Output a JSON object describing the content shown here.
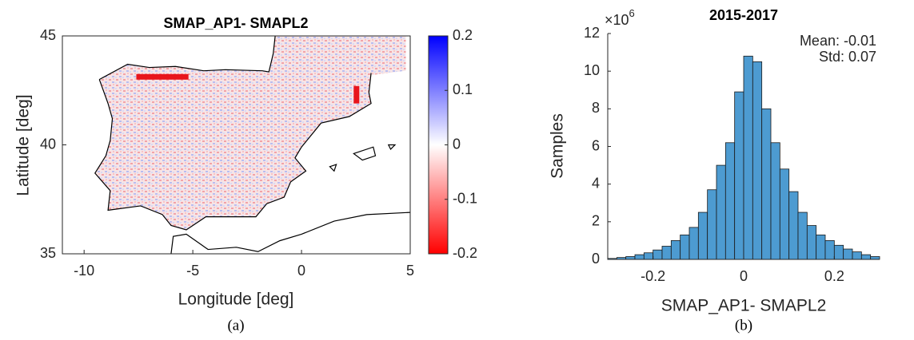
{
  "chart_data": [
    {
      "type": "map",
      "title": "SMAP_AP1- SMAPL2",
      "xlabel": "Longitude [deg]",
      "ylabel": "Latitude [deg]",
      "xlim": [
        -11,
        5
      ],
      "xticks": [
        -10,
        -5,
        0,
        5
      ],
      "ylim": [
        35,
        45
      ],
      "yticks": [
        35,
        40,
        45
      ],
      "colorbar": {
        "lim": [
          -0.2,
          0.2
        ],
        "ticks": [
          -0.2,
          -0.1,
          0,
          0.1,
          0.2
        ],
        "colors": [
          "#ff0000",
          "#ffffff",
          "#0000ff"
        ]
      },
      "caption": "(a)"
    },
    {
      "type": "histogram",
      "title": "2015-2017",
      "xlabel": "SMAP_AP1- SMAPL2",
      "ylabel": "Samples",
      "bins": [
        -0.3,
        -0.28,
        -0.26,
        -0.24,
        -0.22,
        -0.2,
        -0.18,
        -0.16,
        -0.14,
        -0.12,
        -0.1,
        -0.08,
        -0.06,
        -0.04,
        -0.02,
        0,
        0.02,
        0.04,
        0.06,
        0.08,
        0.1,
        0.12,
        0.14,
        0.16,
        0.18,
        0.2,
        0.22,
        0.24,
        0.26,
        0.28,
        0.3
      ],
      "values": [
        0.05,
        0.1,
        0.15,
        0.25,
        0.35,
        0.5,
        0.7,
        1.0,
        1.3,
        1.7,
        2.5,
        3.7,
        5.0,
        6.2,
        8.9,
        10.8,
        10.5,
        8.0,
        6.2,
        4.8,
        3.6,
        2.5,
        1.8,
        1.3,
        1.0,
        0.75,
        0.55,
        0.4,
        0.25,
        0.15
      ],
      "color": "#4d9bd1",
      "xlim": [
        -0.3,
        0.3
      ],
      "xticks": [
        -0.2,
        0,
        0.2
      ],
      "ylim": [
        0,
        12
      ],
      "yticks": [
        0,
        2,
        4,
        6,
        8,
        10,
        12
      ],
      "y_multiplier": "×10",
      "y_multiplier_exponent": "6",
      "annotations": [
        "Mean: -0.01",
        "Std: 0.07"
      ],
      "caption": "(b)"
    }
  ]
}
